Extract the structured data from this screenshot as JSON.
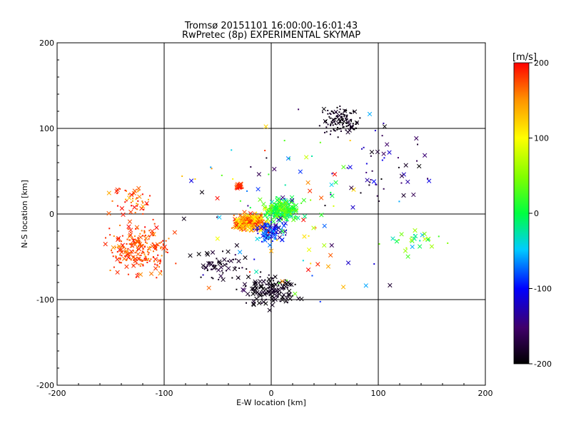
{
  "header": {
    "title": "Tromsø 20151101 16:00:00-16:01:43",
    "subtitle": "RwPretec (8p) EXPERIMENTAL SKYMAP"
  },
  "chart_data": {
    "type": "scatter",
    "title": "Tromsø 20151101 16:00:00-16:01:43",
    "subtitle": "RwPretec (8p) EXPERIMENTAL SKYMAP",
    "xlabel": "E-W location [km]",
    "ylabel": "N-S location [km]",
    "xlim": [
      -200,
      200
    ],
    "ylim": [
      -200,
      200
    ],
    "xticks": [
      -200,
      -100,
      0,
      100,
      200
    ],
    "yticks": [
      -200,
      -100,
      0,
      100,
      200
    ],
    "grid": true,
    "colorbar": {
      "label": "[m/s]",
      "range": [
        -200,
        200
      ],
      "ticks": [
        200,
        100,
        0,
        -100,
        -200
      ],
      "colormap": "black-purple-blue-cyan-green-yellow-orange-red"
    },
    "markers": {
      "dot": "small dot",
      "cross": "x"
    },
    "clusters": [
      {
        "cx": -125,
        "cy": -40,
        "rx": 45,
        "ry": 45,
        "n": 260,
        "v": [
          150,
          200
        ],
        "cross": 0.22
      },
      {
        "cx": -130,
        "cy": 15,
        "rx": 35,
        "ry": 25,
        "n": 50,
        "v": [
          130,
          200
        ],
        "cross": 0.3
      },
      {
        "cx": -20,
        "cy": -10,
        "rx": 22,
        "ry": 16,
        "n": 260,
        "v": [
          100,
          200
        ],
        "cross": 0.55
      },
      {
        "cx": 10,
        "cy": 5,
        "rx": 22,
        "ry": 18,
        "n": 260,
        "v": [
          -30,
          60
        ],
        "cross": 0.5
      },
      {
        "cx": 0,
        "cy": -20,
        "rx": 25,
        "ry": 20,
        "n": 90,
        "v": [
          -150,
          -40
        ],
        "cross": 0.5
      },
      {
        "cx": -30,
        "cy": 32,
        "rx": 6,
        "ry": 5,
        "n": 30,
        "v": [
          170,
          200
        ],
        "cross": 0.6
      },
      {
        "cx": 65,
        "cy": 110,
        "rx": 30,
        "ry": 25,
        "n": 120,
        "v": [
          -200,
          -180
        ],
        "cross": 0.12
      },
      {
        "cx": 0,
        "cy": -90,
        "rx": 40,
        "ry": 30,
        "n": 130,
        "v": [
          -200,
          -180
        ],
        "cross": 0.6
      },
      {
        "cx": -50,
        "cy": -60,
        "rx": 40,
        "ry": 30,
        "n": 60,
        "v": [
          -200,
          -170
        ],
        "cross": 0.4
      },
      {
        "cx": 110,
        "cy": 60,
        "rx": 60,
        "ry": 60,
        "n": 40,
        "v": [
          -200,
          -100
        ],
        "cross": 0.5
      },
      {
        "cx": 130,
        "cy": -30,
        "rx": 50,
        "ry": 20,
        "n": 25,
        "v": [
          -60,
          80
        ],
        "cross": 0.7
      },
      {
        "cx": 20,
        "cy": 0,
        "rx": 150,
        "ry": 150,
        "n": 120,
        "v": [
          -200,
          200
        ],
        "cross": 0.5
      }
    ]
  }
}
